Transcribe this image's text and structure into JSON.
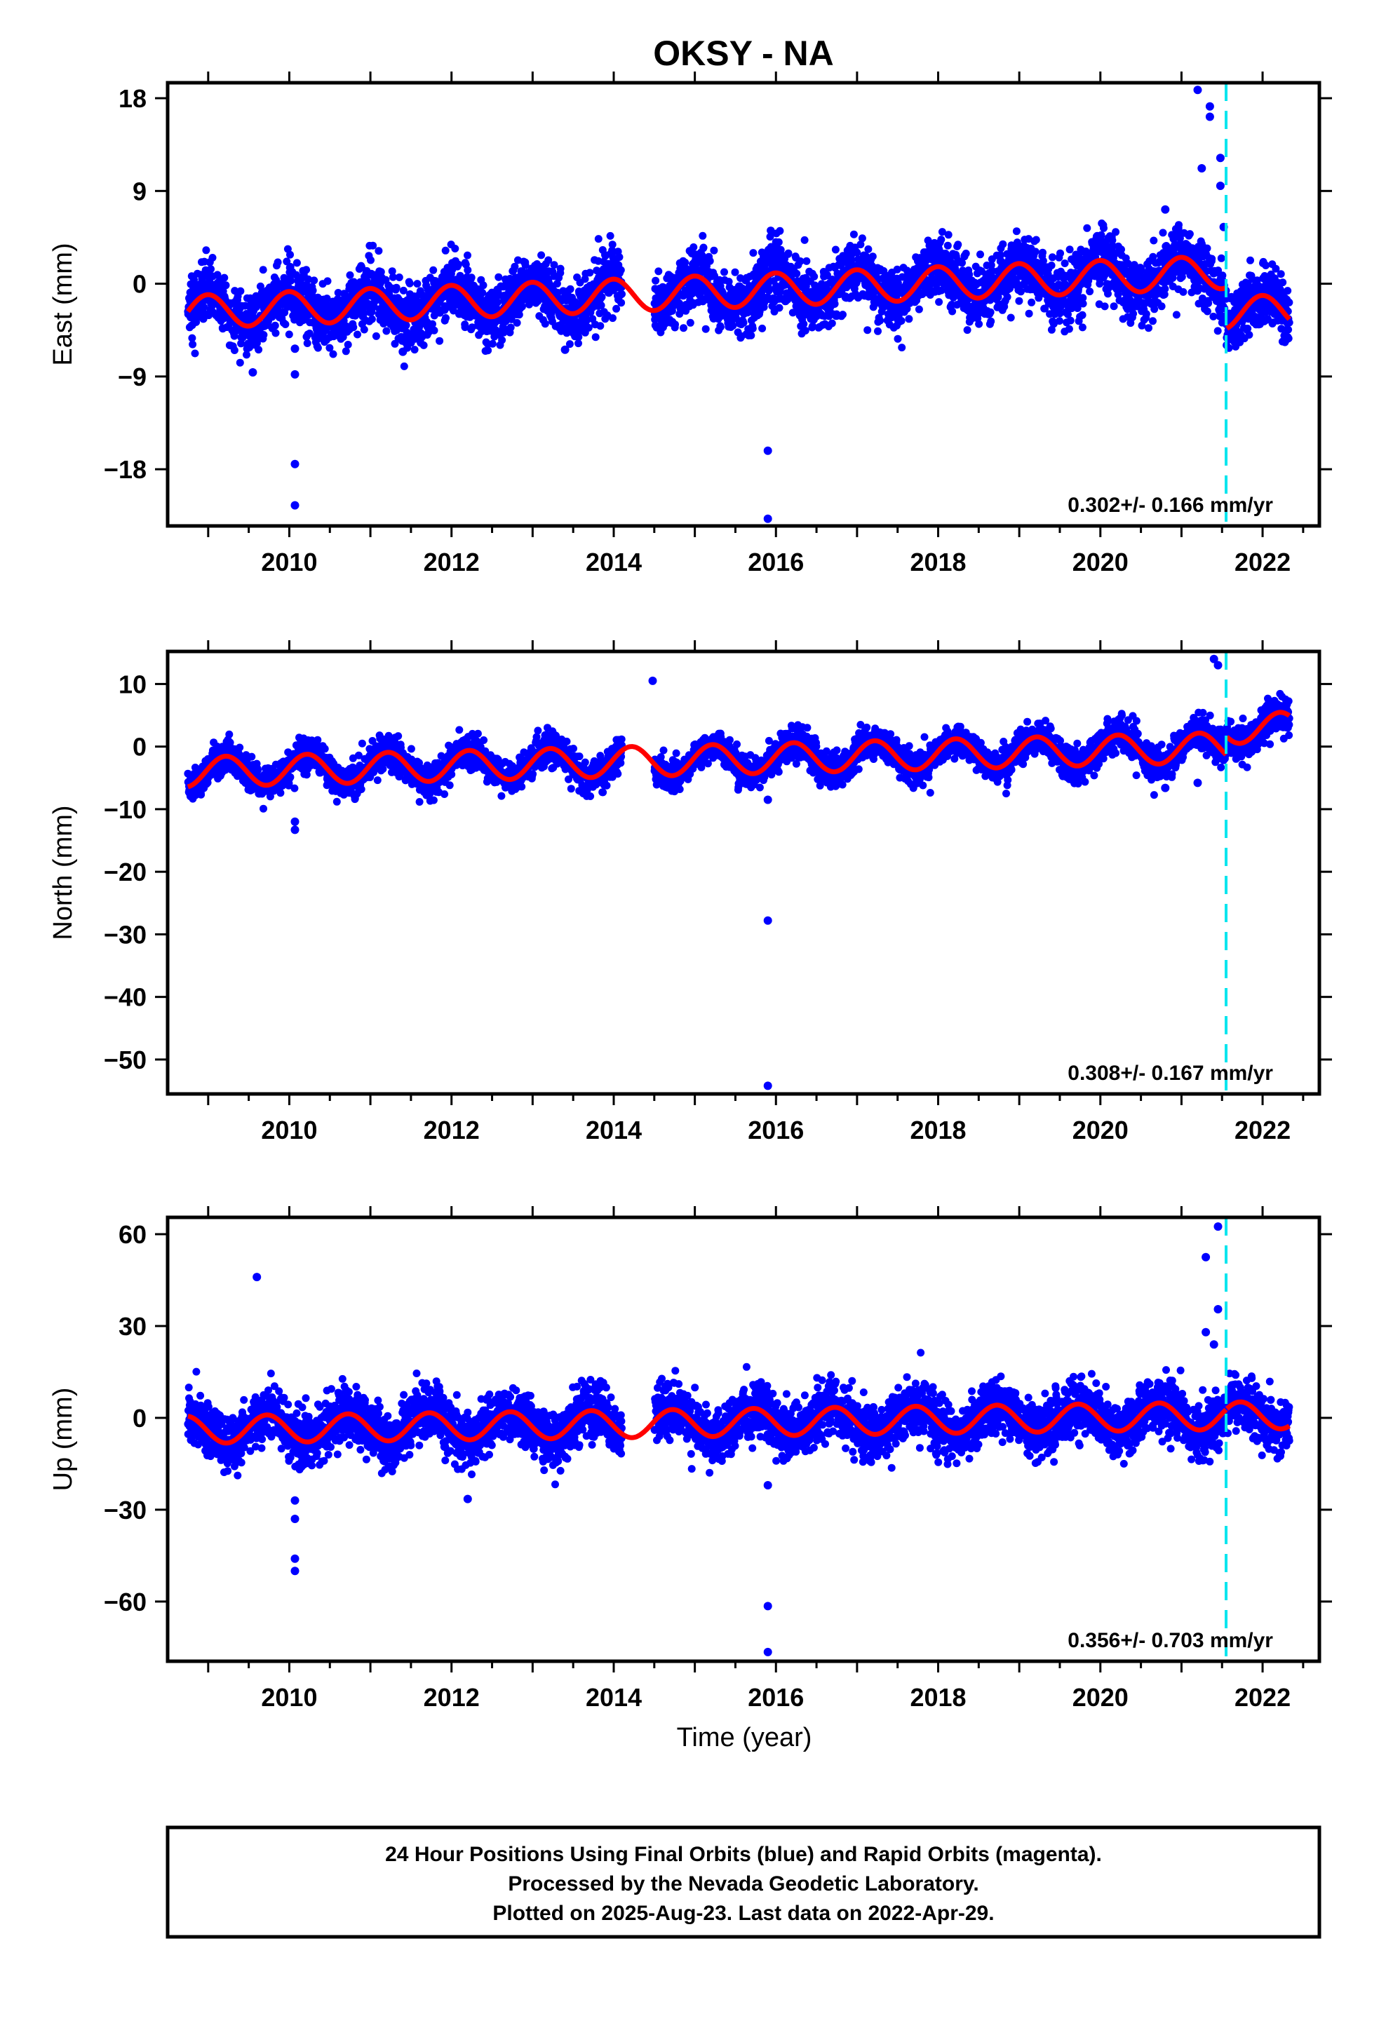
{
  "title": "OKSY - NA",
  "colors": {
    "final_orbit_points": "#0000ff",
    "model_fit": "#ff0000",
    "event_marker": "#00e5ee",
    "axes": "#000000"
  },
  "caption": [
    "24 Hour Positions Using Final Orbits (blue) and Rapid Orbits (magenta).",
    "Processed by the Nevada Geodetic Laboratory.",
    "Plotted on 2025-Aug-23. Last data on 2022-Apr-29."
  ],
  "chart_data": [
    {
      "type": "scatter",
      "panel": "east",
      "ylabel": "East (mm)",
      "xlabel": "",
      "xlim": [
        2008.5,
        2022.7
      ],
      "ylim": [
        -23.5,
        19.5
      ],
      "xticks": [
        2010,
        2012,
        2014,
        2016,
        2018,
        2020,
        2022
      ],
      "yticks": [
        -18,
        -9,
        0,
        9,
        18
      ],
      "ytick_labels": [
        "−18",
        "−9",
        "0",
        "9",
        "18"
      ],
      "event_x": 2021.55,
      "rate_label": "0.302+/- 0.166 mm/yr",
      "data_start": 2008.75,
      "data_end": 2022.33,
      "gap": [
        2014.1,
        2014.5
      ],
      "offset": -0.7,
      "trend": 0.302,
      "annual_amplitude": 1.6,
      "annual_phase": 1.6,
      "noise_sd": 1.5,
      "step_at_event": -4.0,
      "outliers": [
        [
          2010.07,
          -17.5
        ],
        [
          2010.07,
          -21.5
        ],
        [
          2010.07,
          -8.8
        ],
        [
          2010.07,
          -6.3
        ],
        [
          2009.55,
          -8.6
        ],
        [
          2011.4,
          -6.6
        ],
        [
          2013.4,
          -6.4
        ],
        [
          2015.9,
          -16.2
        ],
        [
          2015.9,
          -22.8
        ],
        [
          2020.8,
          7.2
        ],
        [
          2021.2,
          18.8
        ],
        [
          2021.35,
          17.2
        ],
        [
          2021.35,
          16.2
        ],
        [
          2021.25,
          11.2
        ],
        [
          2021.48,
          12.2
        ],
        [
          2021.48,
          9.5
        ],
        [
          2021.52,
          5.5
        ]
      ]
    },
    {
      "type": "scatter",
      "panel": "north",
      "ylabel": "North (mm)",
      "xlabel": "",
      "xlim": [
        2008.5,
        2022.7
      ],
      "ylim": [
        -55.5,
        15.2
      ],
      "xticks": [
        2010,
        2012,
        2014,
        2016,
        2018,
        2020,
        2022
      ],
      "yticks": [
        -50,
        -40,
        -30,
        -20,
        -10,
        0,
        10
      ],
      "ytick_labels": [
        "−50",
        "−40",
        "−30",
        "−20",
        "−10",
        "0",
        "10"
      ],
      "event_x": 2021.55,
      "rate_label": "0.308+/- 0.167 mm/yr",
      "data_start": 2008.75,
      "data_end": 2022.33,
      "gap": [
        2014.1,
        2014.5
      ],
      "offset": -2.0,
      "trend": 0.308,
      "annual_amplitude": 2.4,
      "annual_phase": 0.2,
      "noise_sd": 1.3,
      "step_at_event": 3.0,
      "outliers": [
        [
          2010.07,
          -12.0
        ],
        [
          2010.07,
          -13.3
        ],
        [
          2015.9,
          -8.5
        ],
        [
          2015.9,
          -27.8
        ],
        [
          2015.9,
          -54.2
        ],
        [
          2014.48,
          10.5
        ],
        [
          2021.4,
          14.0
        ],
        [
          2021.45,
          13.0
        ],
        [
          2021.2,
          -5.8
        ],
        [
          2020.8,
          -6.6
        ]
      ]
    },
    {
      "type": "scatter",
      "panel": "up",
      "ylabel": "Up (mm)",
      "xlabel": "Time (year)",
      "xlim": [
        2008.5,
        2022.7
      ],
      "ylim": [
        -79.5,
        65.5
      ],
      "xticks": [
        2010,
        2012,
        2014,
        2016,
        2018,
        2020,
        2022
      ],
      "yticks": [
        -60,
        -30,
        0,
        30,
        60
      ],
      "ytick_labels": [
        "−60",
        "−30",
        "0",
        "30",
        "60"
      ],
      "event_x": 2021.55,
      "rate_label": "0.356+/- 0.703 mm/yr",
      "data_start": 2008.75,
      "data_end": 2022.33,
      "gap": [
        2014.1,
        2014.5
      ],
      "offset": -1.5,
      "trend": 0.356,
      "annual_amplitude": 4.5,
      "annual_phase": 3.3,
      "noise_sd": 4.5,
      "step_at_event": 0.0,
      "outliers": [
        [
          2009.6,
          46.0
        ],
        [
          2010.07,
          -27.0
        ],
        [
          2010.07,
          -33.0
        ],
        [
          2010.07,
          -46.0
        ],
        [
          2010.07,
          -50.0
        ],
        [
          2012.2,
          -26.5
        ],
        [
          2015.9,
          -22.0
        ],
        [
          2015.9,
          -61.5
        ],
        [
          2015.9,
          -76.5
        ],
        [
          2021.3,
          52.5
        ],
        [
          2021.3,
          28.0
        ],
        [
          2021.45,
          62.5
        ],
        [
          2021.45,
          35.5
        ],
        [
          2021.4,
          24.0
        ]
      ]
    }
  ]
}
